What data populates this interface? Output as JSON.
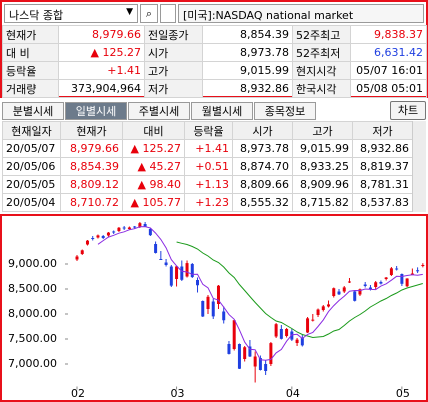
{
  "header": {
    "market_select": "나스닥 종합",
    "market_name": "[미국]:NASDAQ national market"
  },
  "quote": {
    "rows": [
      [
        "현재가",
        "8,979.66",
        "전일종가",
        "8,854.39",
        "52주최고",
        "9,838.37"
      ],
      [
        "대 비",
        "▲ 125.27",
        "시가",
        "8,973.78",
        "52주최저",
        "6,631.42"
      ],
      [
        "등락율",
        "+1.41",
        "고가",
        "9,015.99",
        "현지시각",
        "05/07 16:01"
      ],
      [
        "거래량",
        "373,904,964",
        "저가",
        "8,932.86",
        "한국시각",
        "05/08 05:01"
      ]
    ]
  },
  "tabs": [
    "분별시세",
    "일별시세",
    "주별시세",
    "월별시세",
    "종목정보"
  ],
  "active_tab": 1,
  "chart_button": "차트",
  "table": {
    "columns": [
      "현재일자",
      "현재가",
      "대비",
      "등락율",
      "시가",
      "고가",
      "저가"
    ],
    "rows": [
      [
        "20/05/07",
        "8,979.66",
        "▲ 125.27",
        "+1.41",
        "8,973.78",
        "9,015.99",
        "8,932.86"
      ],
      [
        "20/05/06",
        "8,854.39",
        "▲ 45.27",
        "+0.51",
        "8,874.70",
        "8,933.25",
        "8,819.37"
      ],
      [
        "20/05/05",
        "8,809.12",
        "▲ 98.40",
        "+1.13",
        "8,809.66",
        "8,909.96",
        "8,781.31"
      ],
      [
        "20/05/04",
        "8,710.72",
        "▲ 105.77",
        "+1.23",
        "8,555.32",
        "8,715.82",
        "8,537.83"
      ]
    ]
  },
  "chart_data": {
    "type": "candlestick",
    "open": [
      9090,
      9200,
      9390,
      9520,
      9530,
      9560,
      9570,
      9650,
      9660,
      9730,
      9700,
      9750,
      9740,
      9800,
      9700,
      9400,
      9100,
      9030,
      8950,
      8700,
      8950,
      8750,
      9000,
      8680,
      8260,
      8100,
      8250,
      8200,
      8050,
      7400,
      7300,
      7400,
      7100,
      7350,
      6950,
      7120,
      7000,
      7000,
      7550,
      7700,
      7560,
      7650,
      7420,
      7520,
      7630,
      7880,
      7980,
      8080,
      8150,
      8360,
      8450,
      8450,
      8640,
      8450,
      8390,
      8590,
      8530,
      8540,
      8640,
      8700,
      8780,
      8910,
      8800,
      8555,
      8810,
      8875,
      8974
    ],
    "high": [
      9180,
      9290,
      9480,
      9560,
      9590,
      9580,
      9640,
      9670,
      9740,
      9760,
      9750,
      9760,
      9840,
      9840,
      9720,
      9450,
      9260,
      9100,
      8980,
      8960,
      9070,
      9070,
      9020,
      8730,
      8270,
      8380,
      8300,
      8580,
      8150,
      7460,
      7880,
      7410,
      7360,
      7480,
      7250,
      7170,
      7080,
      7440,
      7820,
      7780,
      7720,
      7700,
      7520,
      7580,
      7940,
      8000,
      8110,
      8180,
      8270,
      8530,
      8500,
      8560,
      8720,
      8460,
      8510,
      8640,
      8580,
      8660,
      8670,
      8740,
      8940,
      8960,
      8810,
      8716,
      8910,
      8933,
      9016
    ],
    "low": [
      9060,
      9180,
      9370,
      9470,
      9510,
      9500,
      9550,
      9600,
      9640,
      9680,
      9680,
      9700,
      9720,
      9740,
      9560,
      9210,
      9080,
      8950,
      8540,
      8550,
      8660,
      8730,
      8720,
      8430,
      7940,
      8000,
      7900,
      8100,
      7810,
      7190,
      7270,
      6900,
      7050,
      7140,
      6630,
      6870,
      6780,
      6960,
      7520,
      7490,
      7530,
      7460,
      7360,
      7350,
      7620,
      7850,
      7940,
      8050,
      8130,
      8330,
      8380,
      8420,
      8620,
      8250,
      8360,
      8530,
      8470,
      8500,
      8590,
      8670,
      8760,
      8870,
      8560,
      8538,
      8781,
      8819,
      8933
    ],
    "close": [
      9150,
      9274,
      9467,
      9509,
      9572,
      9520,
      9628,
      9638,
      9725,
      9711,
      9731,
      9732,
      9817,
      9750,
      9577,
      9221,
      9093,
      8980,
      8567,
      8952,
      8684,
      9018,
      8739,
      8575,
      7950,
      8344,
      7952,
      8566,
      7875,
      7201,
      7875,
      6905,
      7335,
      7150,
      7150,
      6880,
      6860,
      7418,
      7797,
      7503,
      7700,
      7487,
      7487,
      7373,
      7913,
      7887,
      8090,
      8153,
      8192,
      8516,
      8393,
      8532,
      8650,
      8263,
      8495,
      8560,
      8494,
      8635,
      8608,
      8730,
      8914,
      8890,
      8604,
      8710,
      8810,
      8854,
      8980
    ],
    "ma5": [
      null,
      null,
      null,
      null,
      9394,
      9468,
      9539,
      9573,
      9617,
      9644,
      9687,
      9707,
      9743,
      9748,
      9721,
      9619,
      9492,
      9324,
      9088,
      8963,
      8855,
      8840,
      8792,
      8794,
      8593,
      8525,
      8312,
      8277,
      8137,
      7988,
      7894,
      7684,
      7438,
      7293,
      7283,
      7084,
      7075,
      7092,
      7221,
      7292,
      7456,
      7581,
      7595,
      7510,
      7592,
      7629,
      7750,
      7883,
      8047,
      8168,
      8269,
      8357,
      8457,
      8471,
      8467,
      8500,
      8492,
      8489,
      8558,
      8605,
      8676,
      8755,
      8749,
      8770,
      8786,
      8774,
      8792
    ],
    "ma20": [
      null,
      null,
      null,
      null,
      null,
      null,
      null,
      null,
      null,
      null,
      null,
      null,
      null,
      null,
      null,
      null,
      null,
      null,
      null,
      9440,
      9415,
      9390,
      9350,
      9300,
      9220,
      9160,
      9080,
      9030,
      8940,
      8820,
      8730,
      8590,
      8470,
      8350,
      8230,
      8120,
      8010,
      7930,
      7860,
      7830,
      7770,
      7710,
      7640,
      7590,
      7560,
      7530,
      7540,
      7550,
      7600,
      7660,
      7690,
      7770,
      7860,
      7930,
      7990,
      8060,
      8140,
      8200,
      8260,
      8310,
      8370,
      8420,
      8480,
      8520,
      8550,
      8580,
      8610
    ],
    "ylim": [
      6550,
      9870
    ],
    "yticks": [
      {
        "value": 9000,
        "label": "9,000.00"
      },
      {
        "value": 8500,
        "label": "8,500.00"
      },
      {
        "value": 8000,
        "label": "8,000.00"
      },
      {
        "value": 7500,
        "label": "7,500.00"
      },
      {
        "value": 7000,
        "label": "7,000.00"
      }
    ],
    "xticks": [
      {
        "value": 0,
        "label": "02"
      },
      {
        "value": 19,
        "label": "03"
      },
      {
        "value": 41,
        "label": "04"
      },
      {
        "value": 62,
        "label": "05"
      }
    ],
    "up_color": "#e8000b",
    "down_color": "#1f3fe0",
    "ma5_color": "#8a2be2",
    "ma20_color": "#1a9a1a"
  }
}
